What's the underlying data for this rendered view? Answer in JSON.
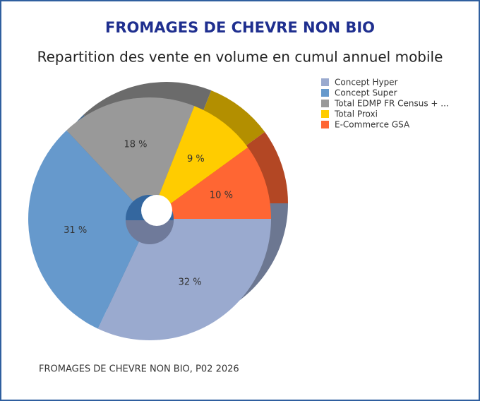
{
  "chart_data": {
    "type": "pie",
    "title": "FROMAGES DE CHEVRE NON BIO",
    "subtitle": "Repartition des vente en volume en cumul annuel mobile",
    "footer": "FROMAGES DE CHEVRE NON BIO, P02 2026",
    "categories": [
      "Concept Hyper",
      "Concept Super",
      "Total EDMP FR Census + ...",
      "Total Proxi",
      "E-Commerce GSA"
    ],
    "values": [
      32,
      31,
      18,
      9,
      10
    ],
    "value_labels": [
      "32 %",
      "31 %",
      "18 %",
      "9 %",
      "10 %"
    ],
    "colors": [
      "#9aaacf",
      "#6699cc",
      "#999999",
      "#ffcc00",
      "#ff6633"
    ],
    "legend": "top-right"
  }
}
